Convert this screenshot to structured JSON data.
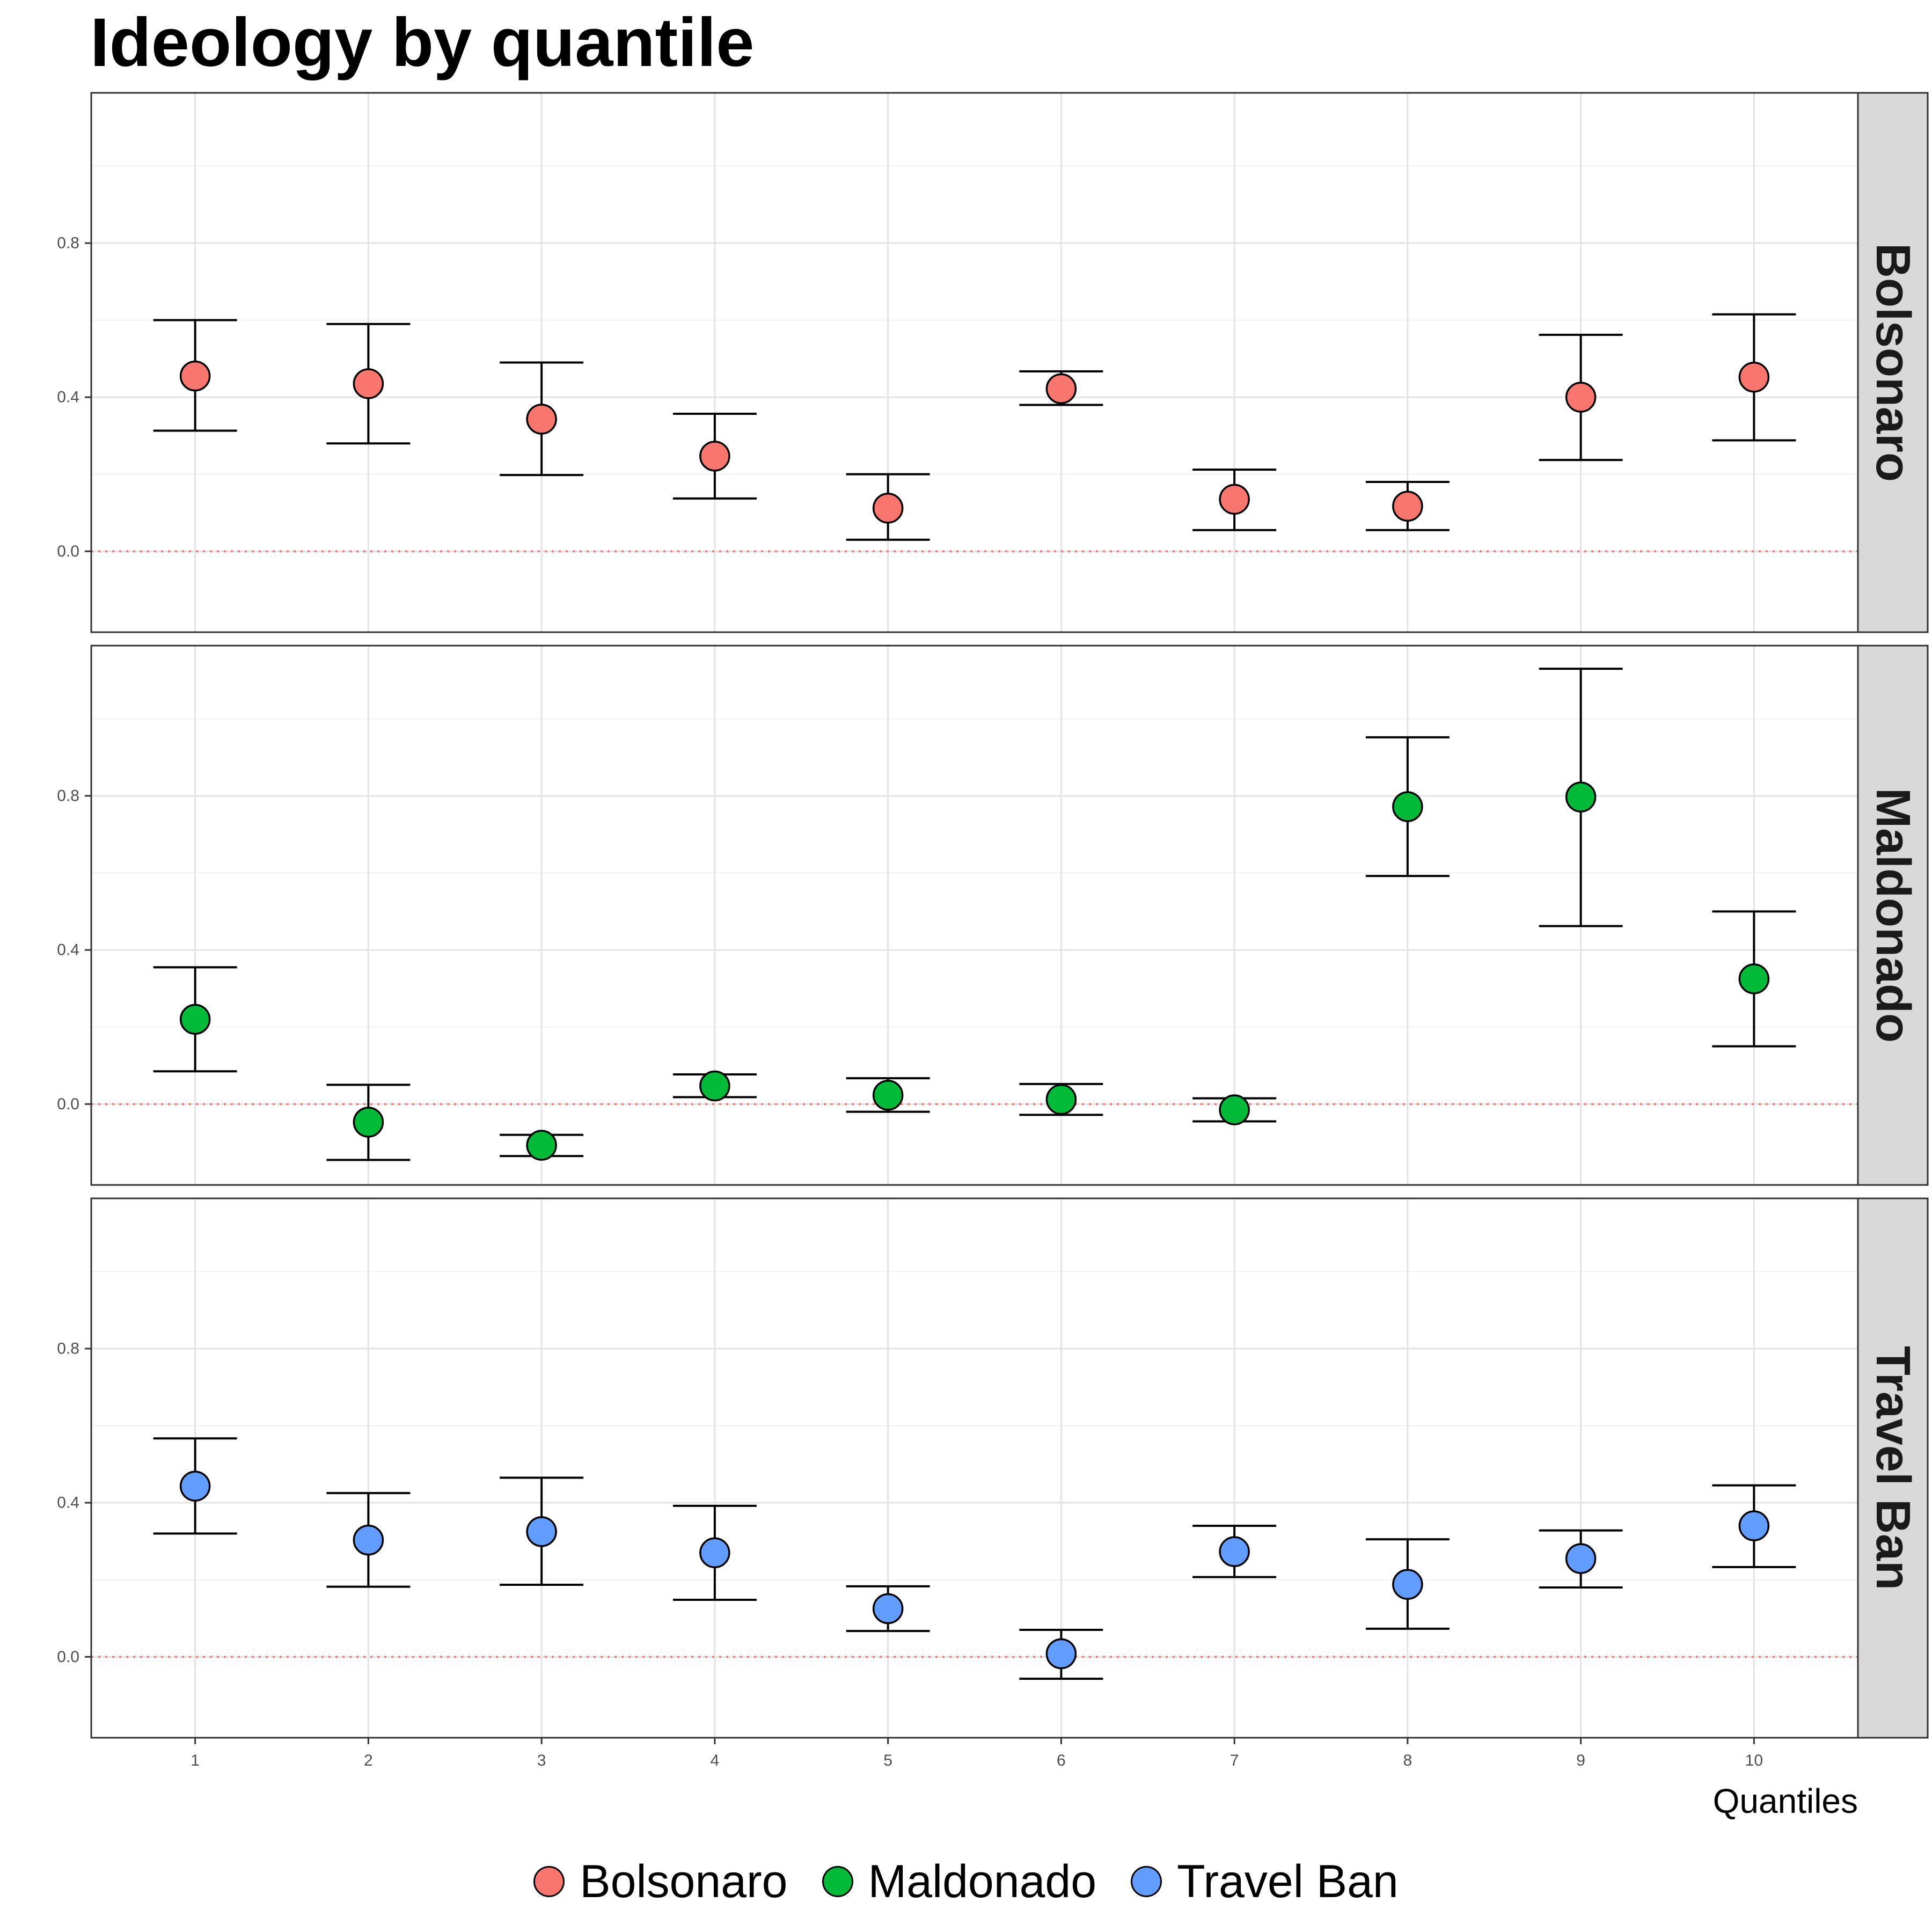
{
  "chart_data": {
    "type": "scatter",
    "title": "Ideology by quantile",
    "xlabel": "Quantiles",
    "ylabel": "",
    "x": [
      1,
      2,
      3,
      4,
      5,
      6,
      7,
      8,
      9,
      10
    ],
    "x_tick_labels": [
      "1",
      "2",
      "3",
      "4",
      "5",
      "6",
      "7",
      "8",
      "9",
      "10"
    ],
    "xlim": [
      0.4,
      10.6
    ],
    "ylim": [
      -0.21,
      1.19
    ],
    "y_ticks": [
      0.0,
      0.4,
      0.8
    ],
    "y_tick_labels": [
      "0.0",
      "0.4",
      "0.8"
    ],
    "reference_line": {
      "y": 0.0,
      "style": "dotted",
      "color": "#F8766D"
    },
    "grid": true,
    "legend_position": "bottom",
    "facets": [
      {
        "label": "Bolsonaro",
        "color": "#F8766D",
        "points": [
          {
            "x": 1,
            "y": 0.455,
            "lo": 0.313,
            "hi": 0.6
          },
          {
            "x": 2,
            "y": 0.435,
            "lo": 0.28,
            "hi": 0.59
          },
          {
            "x": 3,
            "y": 0.343,
            "lo": 0.198,
            "hi": 0.49
          },
          {
            "x": 4,
            "y": 0.247,
            "lo": 0.137,
            "hi": 0.357
          },
          {
            "x": 5,
            "y": 0.112,
            "lo": 0.03,
            "hi": 0.2
          },
          {
            "x": 6,
            "y": 0.422,
            "lo": 0.38,
            "hi": 0.467
          },
          {
            "x": 7,
            "y": 0.135,
            "lo": 0.055,
            "hi": 0.212
          },
          {
            "x": 8,
            "y": 0.117,
            "lo": 0.055,
            "hi": 0.18
          },
          {
            "x": 9,
            "y": 0.4,
            "lo": 0.237,
            "hi": 0.562
          },
          {
            "x": 10,
            "y": 0.452,
            "lo": 0.288,
            "hi": 0.615
          }
        ]
      },
      {
        "label": "Maldonado",
        "color": "#00BA38",
        "points": [
          {
            "x": 1,
            "y": 0.22,
            "lo": 0.085,
            "hi": 0.355
          },
          {
            "x": 2,
            "y": -0.047,
            "lo": -0.145,
            "hi": 0.05
          },
          {
            "x": 3,
            "y": -0.107,
            "lo": -0.135,
            "hi": -0.08
          },
          {
            "x": 4,
            "y": 0.047,
            "lo": 0.018,
            "hi": 0.077
          },
          {
            "x": 5,
            "y": 0.023,
            "lo": -0.02,
            "hi": 0.067
          },
          {
            "x": 6,
            "y": 0.012,
            "lo": -0.028,
            "hi": 0.052
          },
          {
            "x": 7,
            "y": -0.015,
            "lo": -0.045,
            "hi": 0.015
          },
          {
            "x": 8,
            "y": 0.772,
            "lo": 0.592,
            "hi": 0.952
          },
          {
            "x": 9,
            "y": 0.797,
            "lo": 0.462,
            "hi": 1.13
          },
          {
            "x": 10,
            "y": 0.325,
            "lo": 0.15,
            "hi": 0.5
          }
        ]
      },
      {
        "label": "Travel Ban",
        "color": "#619CFF",
        "points": [
          {
            "x": 1,
            "y": 0.443,
            "lo": 0.32,
            "hi": 0.567
          },
          {
            "x": 2,
            "y": 0.303,
            "lo": 0.182,
            "hi": 0.425
          },
          {
            "x": 3,
            "y": 0.325,
            "lo": 0.187,
            "hi": 0.465
          },
          {
            "x": 4,
            "y": 0.27,
            "lo": 0.148,
            "hi": 0.392
          },
          {
            "x": 5,
            "y": 0.125,
            "lo": 0.067,
            "hi": 0.183
          },
          {
            "x": 6,
            "y": 0.008,
            "lo": -0.057,
            "hi": 0.07
          },
          {
            "x": 7,
            "y": 0.273,
            "lo": 0.207,
            "hi": 0.34
          },
          {
            "x": 8,
            "y": 0.188,
            "lo": 0.073,
            "hi": 0.305
          },
          {
            "x": 9,
            "y": 0.255,
            "lo": 0.18,
            "hi": 0.328
          },
          {
            "x": 10,
            "y": 0.34,
            "lo": 0.233,
            "hi": 0.445
          }
        ]
      }
    ],
    "legend": [
      {
        "label": "Bolsonaro",
        "color": "#F8766D"
      },
      {
        "label": "Maldonado",
        "color": "#00BA38"
      },
      {
        "label": "Travel Ban",
        "color": "#619CFF"
      }
    ]
  }
}
